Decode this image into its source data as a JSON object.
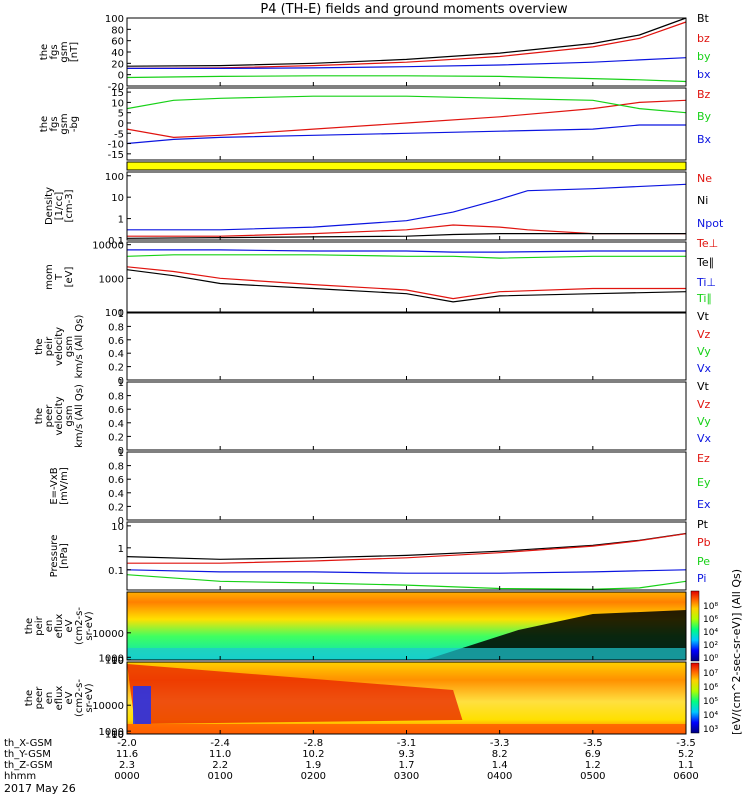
{
  "title": "P4 (TH-E) fields and ground moments overview",
  "date_label": "2017 May 26",
  "colors": {
    "black": "#000000",
    "red": "#e0140f",
    "green": "#17d117",
    "blue": "#0b14e0",
    "yellow": "#ffff00"
  },
  "chart_data": [
    {
      "id": "p1",
      "type": "line",
      "ylabel": [
        "the",
        "fgs",
        "gsm",
        "[nT]"
      ],
      "ylim": [
        -20,
        100
      ],
      "ticks": [
        100,
        80,
        60,
        40,
        20,
        0,
        -20
      ],
      "legend": [
        {
          "name": "Bt",
          "color": "black"
        },
        {
          "name": "bz",
          "color": "red"
        },
        {
          "name": "by",
          "color": "green"
        },
        {
          "name": "bx",
          "color": "blue"
        }
      ],
      "x_hours": [
        0,
        1,
        2,
        3,
        4,
        5,
        5.5,
        6
      ],
      "series": [
        {
          "name": "Bt",
          "color": "black",
          "values": [
            15,
            16,
            20,
            27,
            38,
            55,
            70,
            100
          ]
        },
        {
          "name": "bz",
          "color": "red",
          "values": [
            11,
            12,
            16,
            22,
            32,
            49,
            64,
            93
          ]
        },
        {
          "name": "by",
          "color": "green",
          "values": [
            -5,
            -3,
            -2,
            -2,
            -3,
            -7,
            -9,
            -12
          ]
        },
        {
          "name": "bx",
          "color": "blue",
          "values": [
            11,
            11,
            12,
            14,
            17,
            22,
            26,
            30
          ]
        }
      ]
    },
    {
      "id": "p2",
      "type": "line",
      "ylabel": [
        "the",
        "fgs",
        "gsm",
        "-bg"
      ],
      "ylim": [
        -18,
        17
      ],
      "ticks": [
        15,
        10,
        5,
        0,
        -5,
        -10,
        -15
      ],
      "legend": [
        {
          "name": "Bz",
          "color": "red"
        },
        {
          "name": "By",
          "color": "green"
        },
        {
          "name": "Bx",
          "color": "blue"
        }
      ],
      "x_hours": [
        0,
        0.5,
        1,
        2,
        3,
        4,
        5,
        5.5,
        6
      ],
      "series": [
        {
          "name": "Bz",
          "color": "red",
          "values": [
            -3,
            -7,
            -6,
            -3,
            0,
            3,
            7,
            10,
            11
          ]
        },
        {
          "name": "By",
          "color": "green",
          "values": [
            7,
            11,
            12,
            13,
            13,
            12,
            11,
            7,
            5
          ]
        },
        {
          "name": "Bx",
          "color": "blue",
          "values": [
            -10,
            -8,
            -7,
            -6,
            -5,
            -4,
            -3,
            -1,
            -1
          ]
        }
      ]
    },
    {
      "id": "p4",
      "type": "line",
      "log": true,
      "ylabel": [
        "Density",
        "[1/cc]",
        "[cm-3]"
      ],
      "ylim": [
        0.1,
        150
      ],
      "ticks": [
        100.0,
        10.0,
        1.0,
        0.1
      ],
      "legend": [
        {
          "name": "Ne",
          "color": "red"
        },
        {
          "name": "Ni",
          "color": "black"
        },
        {
          "name": "Npot",
          "color": "blue"
        },
        {
          "name": "",
          "color": "black"
        }
      ],
      "x_hours": [
        0,
        1,
        2,
        3,
        3.5,
        4,
        4.3,
        5,
        6
      ],
      "series": [
        {
          "name": "Npot",
          "color": "blue",
          "values": [
            0.3,
            0.3,
            0.4,
            0.8,
            2,
            8,
            20,
            25,
            40
          ]
        },
        {
          "name": "Ne",
          "color": "red",
          "values": [
            0.15,
            0.15,
            0.2,
            0.3,
            0.5,
            0.4,
            0.3,
            0.2,
            0.2
          ]
        },
        {
          "name": "Ni",
          "color": "black",
          "values": [
            0.12,
            0.13,
            0.14,
            0.15,
            0.18,
            0.2,
            0.2,
            0.2,
            0.2
          ]
        }
      ]
    },
    {
      "id": "p5",
      "type": "line",
      "log": true,
      "ylabel": [
        "mom",
        "T",
        "[eV]"
      ],
      "ylim": [
        100,
        12000
      ],
      "ticks": [
        10000,
        1000,
        100
      ],
      "legend": [
        {
          "name": "Te⊥",
          "color": "red"
        },
        {
          "name": "Te∥",
          "color": "black"
        },
        {
          "name": "Ti⊥",
          "color": "blue"
        },
        {
          "name": "Ti∥",
          "color": "green"
        }
      ],
      "x_hours": [
        0,
        0.5,
        1,
        2,
        3,
        3.5,
        4,
        5,
        6
      ],
      "series": [
        {
          "name": "Ti⊥",
          "color": "blue",
          "values": [
            7000,
            7000,
            7000,
            6500,
            6500,
            6000,
            6000,
            6500,
            6500
          ]
        },
        {
          "name": "Ti∥",
          "color": "green",
          "values": [
            4500,
            5000,
            5000,
            5000,
            4500,
            4500,
            4000,
            4500,
            4500
          ]
        },
        {
          "name": "Te⊥",
          "color": "red",
          "values": [
            2200,
            1600,
            1000,
            650,
            450,
            250,
            400,
            500,
            500
          ]
        },
        {
          "name": "Te∥",
          "color": "black",
          "values": [
            1800,
            1200,
            700,
            500,
            350,
            200,
            300,
            350,
            400
          ]
        }
      ]
    },
    {
      "id": "p6",
      "type": "line",
      "ylabel": [
        "the",
        "peir",
        "velocity",
        "gsm",
        "km/s (All Qs)"
      ],
      "ylim": [
        0,
        1
      ],
      "ticks": [
        1.0,
        0.8,
        0.6,
        0.4,
        0.2,
        0.0
      ],
      "legend": [
        {
          "name": "Vt",
          "color": "black"
        },
        {
          "name": "Vz",
          "color": "red"
        },
        {
          "name": "Vy",
          "color": "green"
        },
        {
          "name": "Vx",
          "color": "blue"
        }
      ],
      "series": []
    },
    {
      "id": "p7",
      "type": "line",
      "ylabel": [
        "the",
        "peer",
        "velocity",
        "gsm",
        "km/s (All Qs)"
      ],
      "ylim": [
        0,
        1
      ],
      "ticks": [
        1.0,
        0.8,
        0.6,
        0.4,
        0.2,
        0.0
      ],
      "legend": [
        {
          "name": "Vt",
          "color": "black"
        },
        {
          "name": "Vz",
          "color": "red"
        },
        {
          "name": "Vy",
          "color": "green"
        },
        {
          "name": "Vx",
          "color": "blue"
        }
      ],
      "series": []
    },
    {
      "id": "p8",
      "type": "line",
      "ylabel": [
        "E=-VxB",
        "[mV/m]"
      ],
      "ylim": [
        0,
        1
      ],
      "ticks": [
        1.0,
        0.8,
        0.6,
        0.4,
        0.2,
        0.0
      ],
      "legend": [
        {
          "name": "Ez",
          "color": "red"
        },
        {
          "name": "Ey",
          "color": "green"
        },
        {
          "name": "Ex",
          "color": "blue"
        }
      ],
      "series": []
    },
    {
      "id": "p9",
      "type": "line",
      "log": true,
      "ylabel": [
        "Pressure",
        "[nPa]"
      ],
      "ylim": [
        0.012,
        15
      ],
      "ticks": [
        10.0,
        1.0,
        0.1,
        0.01
      ],
      "legend": [
        {
          "name": "Pt",
          "color": "black"
        },
        {
          "name": "Pb",
          "color": "red"
        },
        {
          "name": "Pe",
          "color": "green"
        },
        {
          "name": "Pi",
          "color": "blue"
        }
      ],
      "x_hours": [
        0,
        1,
        2,
        3,
        4,
        5,
        5.5,
        6
      ],
      "series": [
        {
          "name": "Pt",
          "color": "black",
          "values": [
            0.4,
            0.3,
            0.35,
            0.45,
            0.7,
            1.3,
            2.2,
            4.5
          ]
        },
        {
          "name": "Pb",
          "color": "red",
          "values": [
            0.2,
            0.2,
            0.25,
            0.35,
            0.6,
            1.2,
            2.1,
            4.4
          ]
        },
        {
          "name": "Pi",
          "color": "blue",
          "values": [
            0.1,
            0.08,
            0.08,
            0.07,
            0.07,
            0.08,
            0.09,
            0.1
          ]
        },
        {
          "name": "Pe",
          "color": "green",
          "values": [
            0.06,
            0.03,
            0.025,
            0.02,
            0.014,
            0.013,
            0.015,
            0.03
          ]
        }
      ]
    },
    {
      "id": "p10",
      "type": "heatmap",
      "ylabel": [
        "the",
        "peir",
        "en",
        "eflux",
        "eV",
        "(cm2-s-",
        "sr-eV)"
      ],
      "ylim": [
        6,
        25000
      ],
      "ticks": [
        10000,
        1000,
        100,
        10
      ]
    },
    {
      "id": "p11",
      "type": "heatmap",
      "ylabel": [
        "the",
        "peer",
        "en",
        "eflux",
        "eV",
        "(cm2-s-",
        "sr-eV)"
      ],
      "ylim": [
        6,
        25000
      ],
      "ticks": [
        10000,
        1000,
        100,
        10
      ]
    }
  ],
  "colorbar_label": "[eV/(cm^2-sec-sr-eV)] (All Qs)",
  "colorbar_top": [
    "10⁸",
    "10⁶",
    "10⁴",
    "10²",
    "10⁰"
  ],
  "colorbar_bottom": [
    "10⁷",
    "10⁶",
    "10⁵",
    "10⁴",
    "10³"
  ],
  "x_axis": {
    "row_labels": [
      "th_X-GSM",
      "th_Y-GSM",
      "th_Z-GSM",
      "hhmm"
    ],
    "columns": [
      [
        "-2.0",
        "11.6",
        "2.3",
        "0000"
      ],
      [
        "-2.4",
        "11.0",
        "2.2",
        "0100"
      ],
      [
        "-2.8",
        "10.2",
        "1.9",
        "0200"
      ],
      [
        "-3.1",
        "9.3",
        "1.7",
        "0300"
      ],
      [
        "-3.3",
        "8.2",
        "1.4",
        "0400"
      ],
      [
        "-3.5",
        "6.9",
        "1.2",
        "0500"
      ],
      [
        "-3.5",
        "5.2",
        "1.1",
        "0600"
      ]
    ]
  }
}
